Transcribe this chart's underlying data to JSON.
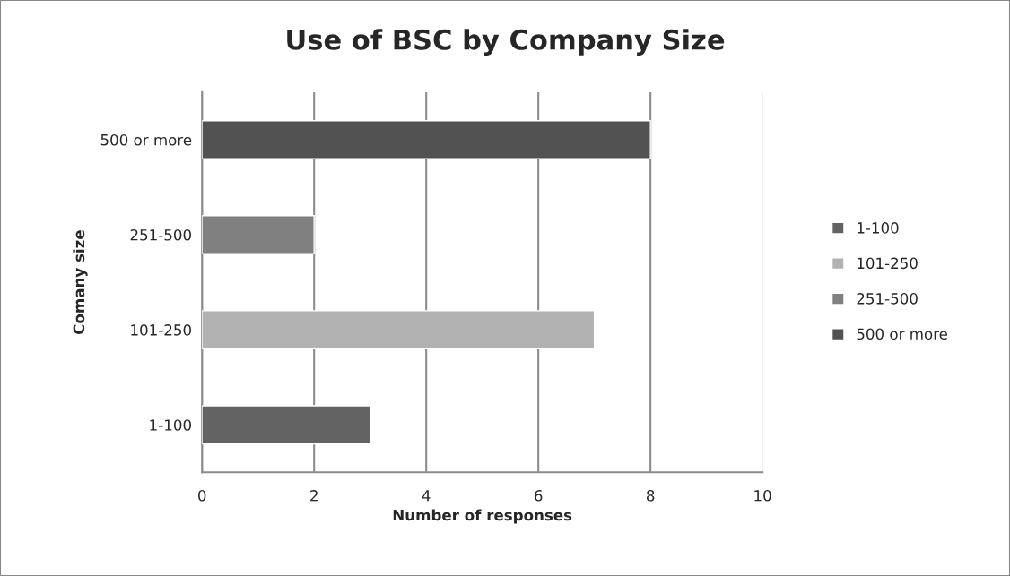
{
  "chart_data": {
    "type": "bar",
    "orientation": "horizontal",
    "title": "Use of BSC by Company Size",
    "xlabel": "Number of responses",
    "ylabel": "Comany size",
    "categories": [
      "500 or more",
      "251-500",
      "101-250",
      "1-100"
    ],
    "series": [
      {
        "name": "1-100",
        "color": "#636363",
        "values": [
          null,
          null,
          null,
          3
        ]
      },
      {
        "name": "101-250",
        "color": "#b2b2b2",
        "values": [
          null,
          null,
          7,
          null
        ]
      },
      {
        "name": "251-500",
        "color": "#808080",
        "values": [
          null,
          2,
          null,
          null
        ]
      },
      {
        "name": "500 or more",
        "color": "#525252",
        "values": [
          8,
          null,
          null,
          null
        ]
      }
    ],
    "xlim": [
      0,
      10
    ],
    "xticks": [
      0,
      2,
      4,
      6,
      8,
      10
    ],
    "grid": "x",
    "legend": "right"
  }
}
